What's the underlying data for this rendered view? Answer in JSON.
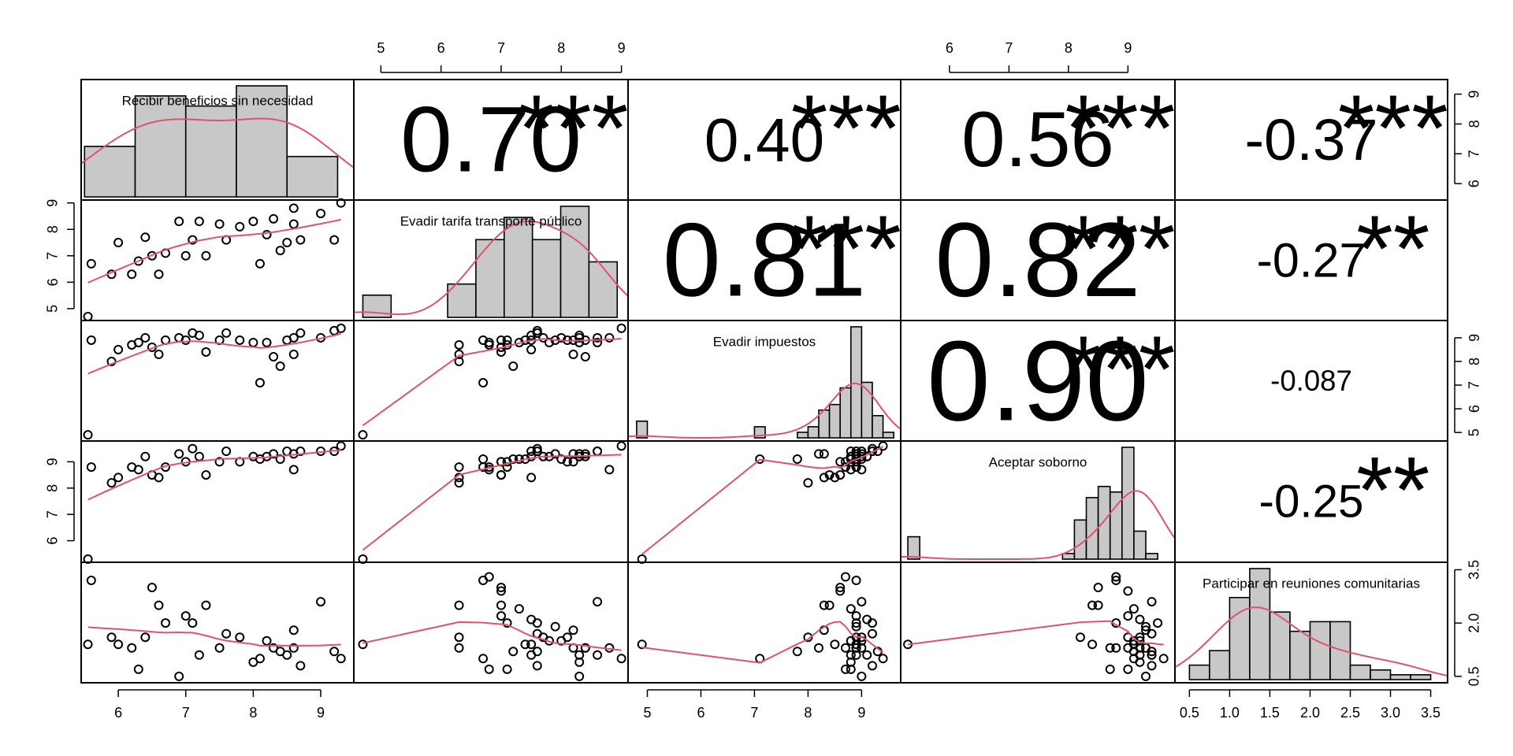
{
  "chart_data": {
    "type": "pairs",
    "variables": [
      {
        "name": "Recibir beneficios sin necesidad",
        "lim": [
          5.45,
          9.49
        ],
        "ticks": [
          6,
          7,
          8,
          9
        ],
        "bins": [
          5.5,
          6.25,
          7,
          7.75,
          8.5,
          9.25
        ],
        "counts": [
          5,
          10,
          9,
          11,
          4
        ]
      },
      {
        "name": "Evadir tarifa transporte público",
        "lim": [
          4.55,
          9.11
        ],
        "ticks": [
          5,
          6,
          7,
          8,
          9
        ],
        "bins": [
          4.7,
          5.17,
          5.64,
          6.11,
          6.58,
          7.05,
          7.52,
          7.99,
          8.46,
          8.93
        ],
        "counts": [
          2,
          0,
          0,
          3,
          7,
          9,
          7,
          10,
          5
        ]
      },
      {
        "name": "Evadir impuestos",
        "lim": [
          4.64,
          9.73
        ],
        "ticks": [
          5,
          6,
          7,
          8,
          9
        ],
        "bins": [
          4.8,
          5.0,
          5.2,
          5.4,
          5.6,
          5.8,
          6.0,
          6.2,
          6.4,
          6.6,
          6.8,
          7.0,
          7.2,
          7.4,
          7.6,
          7.8,
          8.0,
          8.2,
          8.4,
          8.6,
          8.8,
          9.0,
          9.2,
          9.4,
          9.6
        ],
        "counts": [
          3,
          0,
          0,
          0,
          0,
          0,
          0,
          0,
          0,
          0,
          0,
          2,
          0,
          0,
          0,
          1,
          2,
          5,
          6,
          9,
          20,
          10,
          4,
          1
        ]
      },
      {
        "name": "Aceptar soborno",
        "lim": [
          5.18,
          9.79
        ],
        "ticks": [
          6,
          7,
          8,
          9
        ],
        "bins": [
          5.3,
          5.5,
          5.7,
          5.9,
          6.1,
          6.3,
          6.5,
          6.7,
          6.9,
          7.1,
          7.3,
          7.5,
          7.7,
          7.9,
          8.1,
          8.3,
          8.5,
          8.7,
          8.9,
          9.1,
          9.3,
          9.5,
          9.7
        ],
        "counts": [
          4,
          0,
          0,
          0,
          0,
          0,
          0,
          0,
          0,
          0,
          0,
          0,
          0,
          1,
          7,
          11,
          13,
          12,
          20,
          5,
          1,
          0
        ]
      },
      {
        "name": "Participar en reuniones comunitarias",
        "lim": [
          0.32,
          3.71
        ],
        "ticks": [
          0.5,
          {
            "value": 1,
            "label": "1.0"
          },
          1.5,
          {
            "value": 2,
            "label": "2.0"
          },
          2.5,
          {
            "value": 3,
            "label": "3.0"
          },
          3.5
        ],
        "yticks": [
          0.5,
          {
            "value": 2,
            "label": "2.0"
          },
          3.5
        ],
        "bins": [
          0.5,
          0.75,
          1,
          1.25,
          1.5,
          1.75,
          2,
          2.25,
          2.5,
          2.75,
          3,
          3.25,
          3.5
        ],
        "counts": [
          3,
          6,
          17,
          23,
          14,
          10,
          12,
          12,
          3,
          2,
          1,
          1
        ]
      }
    ],
    "correlations": [
      [
        0.7,
        0.4,
        0.56,
        -0.37
      ],
      [
        0.81,
        0.82,
        -0.27
      ],
      [
        0.9,
        -0.087
      ],
      [
        -0.25
      ]
    ],
    "value_labels": [
      [
        "0.70",
        "0.40",
        "0.56",
        "-0.37"
      ],
      [
        "0.81",
        "0.82",
        "-0.27"
      ],
      [
        "0.90",
        "-0.087"
      ],
      [
        "-0.25"
      ]
    ],
    "stars": [
      [
        "***",
        "***",
        "***",
        "***"
      ],
      [
        "***",
        "***",
        "**"
      ],
      [
        "***",
        null
      ],
      [
        "**"
      ]
    ],
    "stars_color": "#DF536B",
    "curve_color": "#DF536B",
    "bar_color": "#c8c8c8",
    "observations": [
      [
        5.55,
        4.7,
        4.9,
        5.3,
        1.4
      ],
      [
        5.6,
        6.7,
        8.9,
        8.8,
        3.2
      ],
      [
        5.9,
        6.3,
        8.0,
        8.2,
        1.6
      ],
      [
        6.0,
        7.5,
        8.5,
        8.4,
        1.4
      ],
      [
        6.2,
        6.3,
        8.7,
        8.8,
        1.3
      ],
      [
        6.3,
        6.8,
        8.8,
        8.7,
        0.7
      ],
      [
        6.4,
        7.7,
        9.0,
        9.2,
        1.6
      ],
      [
        6.5,
        7.0,
        8.6,
        8.5,
        3.0
      ],
      [
        6.6,
        6.3,
        8.3,
        8.4,
        2.5
      ],
      [
        6.7,
        7.1,
        8.9,
        8.8,
        2.0
      ],
      [
        6.9,
        8.3,
        9.0,
        9.3,
        0.5
      ],
      [
        7.0,
        7.0,
        8.9,
        9.0,
        2.2
      ],
      [
        7.1,
        7.6,
        9.2,
        9.5,
        2.0
      ],
      [
        7.2,
        8.3,
        9.1,
        9.2,
        1.1
      ],
      [
        7.3,
        7.0,
        8.4,
        8.5,
        2.5
      ],
      [
        7.5,
        8.2,
        8.9,
        9.0,
        1.3
      ],
      [
        7.6,
        7.6,
        9.2,
        9.4,
        1.7
      ],
      [
        7.8,
        8.1,
        8.9,
        9.0,
        1.6
      ],
      [
        8.0,
        8.3,
        8.8,
        9.2,
        0.9
      ],
      [
        8.1,
        6.7,
        7.1,
        9.1,
        1.0
      ],
      [
        8.2,
        7.8,
        8.8,
        9.2,
        1.5
      ],
      [
        8.3,
        8.4,
        8.2,
        9.3,
        1.3
      ],
      [
        8.4,
        7.2,
        7.8,
        9.1,
        1.2
      ],
      [
        8.5,
        7.5,
        8.9,
        9.4,
        1.1
      ],
      [
        8.6,
        8.8,
        9.0,
        8.7,
        1.3
      ],
      [
        8.6,
        8.2,
        8.3,
        9.3,
        1.8
      ],
      [
        8.7,
        7.6,
        9.2,
        9.4,
        0.8
      ],
      [
        9.0,
        8.6,
        9.0,
        9.4,
        2.6
      ],
      [
        9.2,
        7.6,
        9.3,
        9.4,
        1.2
      ],
      [
        9.3,
        9.0,
        9.4,
        9.6,
        1.0
      ],
      [
        null,
        6.8,
        8.7,
        8.8,
        3.3
      ],
      [
        null,
        7.0,
        8.6,
        9.0,
        2.9
      ],
      [
        null,
        7.3,
        8.8,
        9.1,
        2.4
      ],
      [
        null,
        7.5,
        9.1,
        9.2,
        2.1
      ],
      [
        null,
        7.9,
        8.9,
        9.3,
        1.9
      ],
      [
        null,
        8.0,
        9.0,
        9.1,
        1.5
      ],
      [
        null,
        8.4,
        8.9,
        9.2,
        1.3
      ],
      [
        null,
        8.6,
        8.8,
        9.4,
        1.1
      ],
      [
        null,
        7.1,
        8.7,
        9.0,
        0.7
      ],
      [
        null,
        7.4,
        8.9,
        9.1,
        1.4
      ]
    ]
  }
}
